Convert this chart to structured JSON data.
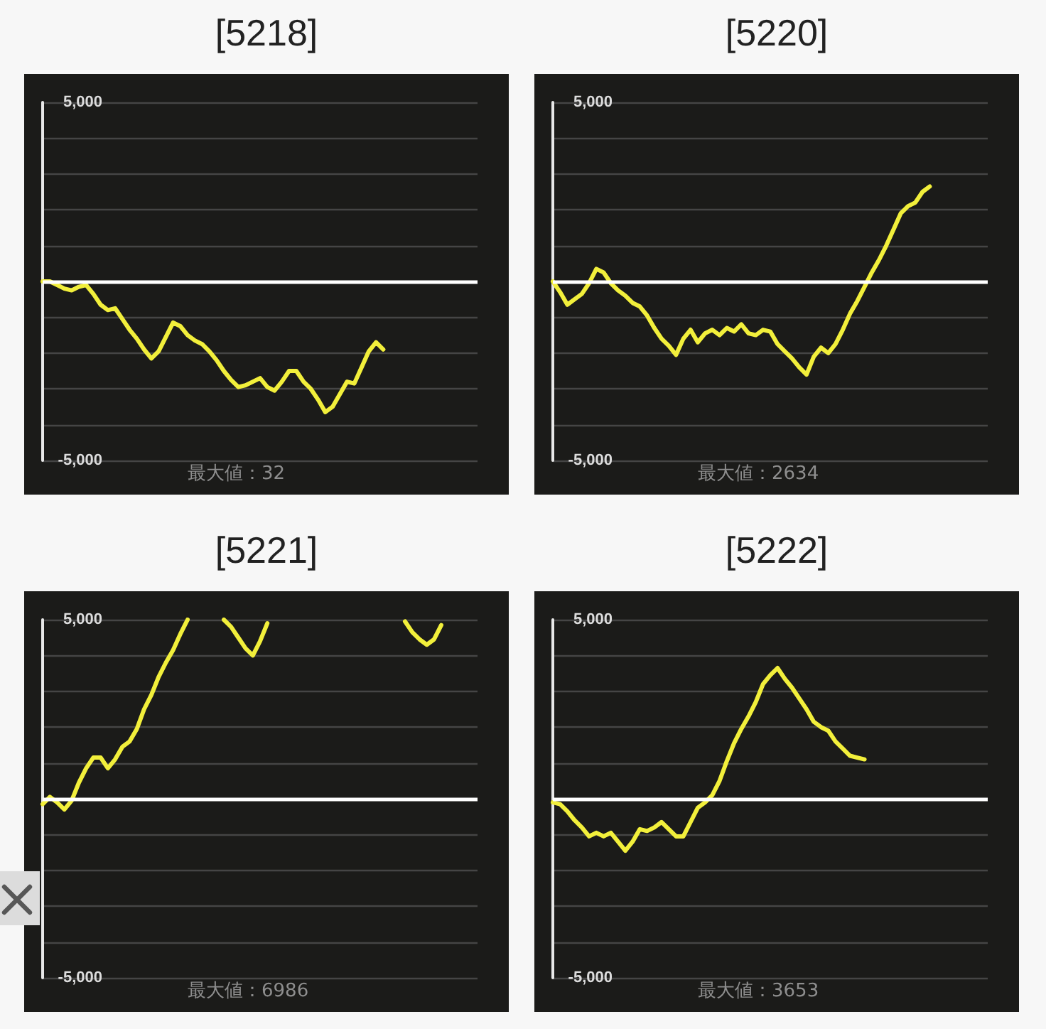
{
  "chart_data": [
    {
      "type": "line",
      "title": "[5218]",
      "annotations": [
        "最大値：32"
      ],
      "categories": [
        null,
        null,
        null,
        null,
        null,
        null,
        null,
        null,
        null,
        null,
        null,
        null,
        null,
        null,
        null,
        null,
        null,
        null,
        null,
        null,
        null,
        null,
        null,
        null,
        null,
        null,
        null,
        null,
        null,
        null,
        null,
        null,
        null,
        null,
        null,
        null,
        null,
        null,
        null,
        null,
        null,
        null,
        null,
        null,
        null,
        null,
        null,
        null,
        null,
        null,
        null,
        null,
        null,
        null,
        null,
        null,
        null,
        null,
        null,
        null,
        null
      ],
      "values": [
        0,
        0,
        -100,
        -200,
        -250,
        -150,
        -100,
        -350,
        -650,
        -800,
        -750,
        -1050,
        -1350,
        -1600,
        -1900,
        -2150,
        -1950,
        -1550,
        -1150,
        -1250,
        -1500,
        -1650,
        -1750,
        -1950,
        -2200,
        -2500,
        -2750,
        -2950,
        -2900,
        -2800,
        -2700,
        -2950,
        -3050,
        -2800,
        -2500,
        -2500,
        -2800,
        -3000,
        -3300,
        -3650,
        -3500,
        -3150,
        -2800,
        -2850,
        -2400,
        -1950,
        -1700,
        -1900,
        null,
        null,
        null,
        null,
        null,
        null,
        null,
        null,
        null,
        null,
        null,
        null,
        null
      ],
      "color": "#f2ef3b",
      "ylim": [
        -5000,
        5000
      ],
      "yticks": [
        {
          "value": -5000,
          "label": "-5,000"
        },
        {
          "value": -4000,
          "label": null
        },
        {
          "value": -3000,
          "label": null
        },
        {
          "value": -2000,
          "label": null
        },
        {
          "value": -1000,
          "label": null
        },
        {
          "value": 0,
          "label": null
        },
        {
          "value": 1000,
          "label": null
        },
        {
          "value": 2000,
          "label": null
        },
        {
          "value": 3000,
          "label": null
        },
        {
          "value": 4000,
          "label": null
        },
        {
          "value": 5000,
          "label": "5,000"
        }
      ],
      "grid": "y",
      "tick_labels": "y",
      "line_style": "solid",
      "ref_lines": [
        {
          "axis": "y",
          "value": 0,
          "color": "#ffffff"
        }
      ]
    },
    {
      "type": "line",
      "title": "[5220]",
      "annotations": [
        "最大値：2634"
      ],
      "categories": [
        null,
        null,
        null,
        null,
        null,
        null,
        null,
        null,
        null,
        null,
        null,
        null,
        null,
        null,
        null,
        null,
        null,
        null,
        null,
        null,
        null,
        null,
        null,
        null,
        null,
        null,
        null,
        null,
        null,
        null,
        null,
        null,
        null,
        null,
        null,
        null,
        null,
        null,
        null,
        null,
        null,
        null,
        null,
        null,
        null,
        null,
        null,
        null,
        null,
        null,
        null,
        null,
        null,
        null,
        null,
        null,
        null,
        null,
        null,
        null,
        null
      ],
      "values": [
        0,
        -300,
        -650,
        -500,
        -350,
        -50,
        350,
        250,
        -50,
        -250,
        -400,
        -600,
        -700,
        -950,
        -1300,
        -1600,
        -1800,
        -2050,
        -1600,
        -1350,
        -1700,
        -1450,
        -1350,
        -1500,
        -1300,
        -1400,
        -1200,
        -1450,
        -1500,
        -1350,
        -1400,
        -1750,
        -1950,
        -2150,
        -2400,
        -2600,
        -2100,
        -1850,
        -2000,
        -1750,
        -1350,
        -900,
        -550,
        -150,
        250,
        600,
        1000,
        1450,
        1900,
        2100,
        2200,
        2500,
        2650,
        null,
        null,
        null,
        null,
        null,
        null,
        null,
        null
      ],
      "color": "#f2ef3b",
      "ylim": [
        -5000,
        5000
      ],
      "yticks": [
        {
          "value": -5000,
          "label": "-5,000"
        },
        {
          "value": -4000,
          "label": null
        },
        {
          "value": -3000,
          "label": null
        },
        {
          "value": -2000,
          "label": null
        },
        {
          "value": -1000,
          "label": null
        },
        {
          "value": 0,
          "label": null
        },
        {
          "value": 1000,
          "label": null
        },
        {
          "value": 2000,
          "label": null
        },
        {
          "value": 3000,
          "label": null
        },
        {
          "value": 4000,
          "label": null
        },
        {
          "value": 5000,
          "label": "5,000"
        }
      ],
      "grid": "y",
      "tick_labels": "y",
      "line_style": "solid",
      "ref_lines": [
        {
          "axis": "y",
          "value": 0,
          "color": "#ffffff"
        }
      ]
    },
    {
      "type": "line",
      "title": "[5221]",
      "annotations": [
        "最大値：6986"
      ],
      "categories": [
        null,
        null,
        null,
        null,
        null,
        null,
        null,
        null,
        null,
        null,
        null,
        null,
        null,
        null,
        null,
        null,
        null,
        null,
        null,
        null,
        null,
        null,
        null,
        null,
        null,
        null,
        null,
        null,
        null,
        null,
        null,
        null,
        null,
        null,
        null,
        null,
        null,
        null,
        null,
        null,
        null,
        null,
        null,
        null,
        null,
        null,
        null,
        null,
        null,
        null,
        null,
        null,
        null,
        null,
        null,
        null,
        null,
        null,
        null,
        null,
        null
      ],
      "values": [
        -150,
        50,
        -100,
        -300,
        -50,
        450,
        850,
        1150,
        1150,
        850,
        1100,
        1450,
        1600,
        1950,
        2500,
        2900,
        3400,
        3800,
        4150,
        4600,
        5000,
        null,
        null,
        null,
        null,
        5000,
        4800,
        4500,
        4200,
        4000,
        4400,
        4900,
        null,
        null,
        null,
        null,
        null,
        null,
        null,
        null,
        null,
        null,
        null,
        null,
        null,
        null,
        null,
        null,
        null,
        null,
        4950,
        4650,
        4450,
        4300,
        4450,
        4850,
        null,
        null,
        null,
        null,
        null
      ],
      "color": "#f2ef3b",
      "ylim": [
        -5000,
        5000
      ],
      "yticks": [
        {
          "value": -5000,
          "label": "-5,000"
        },
        {
          "value": -4000,
          "label": null
        },
        {
          "value": -3000,
          "label": null
        },
        {
          "value": -2000,
          "label": null
        },
        {
          "value": -1000,
          "label": null
        },
        {
          "value": 0,
          "label": null
        },
        {
          "value": 1000,
          "label": null
        },
        {
          "value": 2000,
          "label": null
        },
        {
          "value": 3000,
          "label": null
        },
        {
          "value": 4000,
          "label": null
        },
        {
          "value": 5000,
          "label": "5,000"
        }
      ],
      "grid": "y",
      "tick_labels": "y",
      "line_style": "solid",
      "ref_lines": [
        {
          "axis": "y",
          "value": 0,
          "color": "#ffffff"
        }
      ]
    },
    {
      "type": "line",
      "title": "[5222]",
      "annotations": [
        "最大値：3653"
      ],
      "categories": [
        null,
        null,
        null,
        null,
        null,
        null,
        null,
        null,
        null,
        null,
        null,
        null,
        null,
        null,
        null,
        null,
        null,
        null,
        null,
        null,
        null,
        null,
        null,
        null,
        null,
        null,
        null,
        null,
        null,
        null,
        null,
        null,
        null,
        null,
        null,
        null,
        null,
        null,
        null,
        null,
        null,
        null,
        null,
        null,
        null,
        null,
        null,
        null,
        null,
        null,
        null,
        null,
        null,
        null,
        null,
        null,
        null,
        null,
        null,
        null,
        null
      ],
      "values": [
        -100,
        -150,
        -350,
        -600,
        -800,
        -1050,
        -950,
        -1050,
        -950,
        -1200,
        -1450,
        -1200,
        -850,
        -900,
        -800,
        -650,
        -850,
        -1050,
        -1050,
        -650,
        -250,
        -100,
        100,
        500,
        1050,
        1550,
        1950,
        2300,
        2700,
        3200,
        3450,
        3650,
        3350,
        3100,
        2800,
        2500,
        2150,
        2000,
        1900,
        1600,
        1400,
        1200,
        1150,
        1100,
        null,
        null,
        null,
        null,
        null,
        null,
        null,
        null,
        null,
        null,
        null,
        null,
        null,
        null,
        null,
        null,
        null
      ],
      "color": "#f2ef3b",
      "ylim": [
        -5000,
        5000
      ],
      "yticks": [
        {
          "value": -5000,
          "label": "-5,000"
        },
        {
          "value": -4000,
          "label": null
        },
        {
          "value": -3000,
          "label": null
        },
        {
          "value": -2000,
          "label": null
        },
        {
          "value": -1000,
          "label": null
        },
        {
          "value": 0,
          "label": null
        },
        {
          "value": 1000,
          "label": null
        },
        {
          "value": 2000,
          "label": null
        },
        {
          "value": 3000,
          "label": null
        },
        {
          "value": 4000,
          "label": null
        },
        {
          "value": 5000,
          "label": "5,000"
        }
      ],
      "grid": "y",
      "tick_labels": "y",
      "line_style": "solid",
      "ref_lines": [
        {
          "axis": "y",
          "value": 0,
          "color": "#ffffff"
        }
      ]
    }
  ]
}
